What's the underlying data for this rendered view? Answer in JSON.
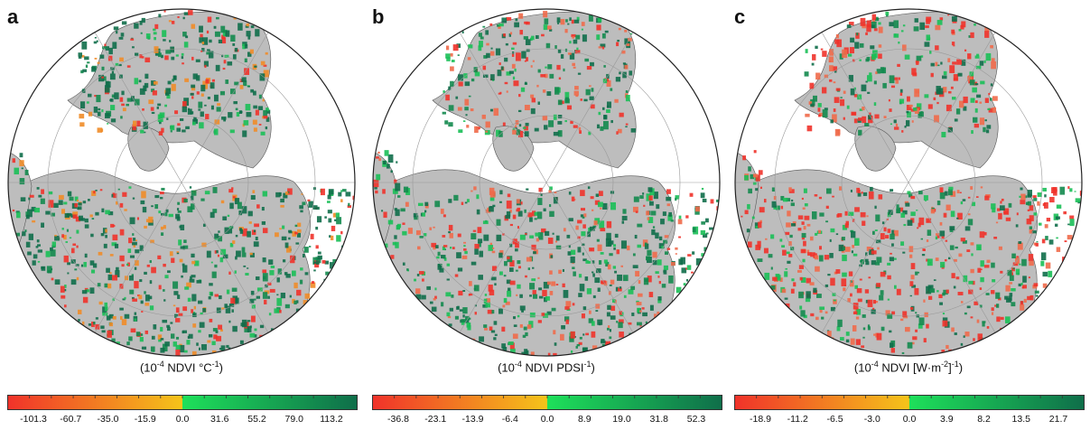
{
  "panels": [
    {
      "letter": "a",
      "unit_prefix": "(10",
      "unit_sup": "-4",
      "unit_mid": " NDVI °C",
      "unit_sup2": "-1",
      "unit_suffix": ")",
      "ticks": [
        "-101.3",
        "-60.7",
        "-35.0",
        "-15.9",
        "0.0",
        "31.6",
        "55.2",
        "79.0",
        "113.2"
      ],
      "palette": "green-dominant"
    },
    {
      "letter": "b",
      "unit_prefix": "(10",
      "unit_sup": "-4",
      "unit_mid": " NDVI PDSI",
      "unit_sup2": "-1",
      "unit_suffix": ")",
      "ticks": [
        "-36.8",
        "-23.1",
        "-13.9",
        "-6.4",
        "0.0",
        "8.9",
        "19.0",
        "31.8",
        "52.3"
      ],
      "palette": "mixed"
    },
    {
      "letter": "c",
      "unit_prefix": "(10",
      "unit_sup": "-4",
      "unit_mid": " NDVI [W·m",
      "unit_sup2": "-2",
      "unit_suffix": "]",
      "unit_sup3": "-1",
      "unit_suffix2": ")",
      "ticks": [
        "-18.9",
        "-11.2",
        "-6.5",
        "-3.0",
        "0.0",
        "3.9",
        "8.2",
        "13.5",
        "21.7"
      ],
      "palette": "mixed-red"
    }
  ],
  "colors": {
    "red": "#f0322a",
    "orange": "#f08c28",
    "yellow": "#f5c41a",
    "light_green": "#1ee05a",
    "dark_green": "#0f6e4a",
    "land_gray": "#bdbdbd",
    "ocean": "#ffffff"
  }
}
